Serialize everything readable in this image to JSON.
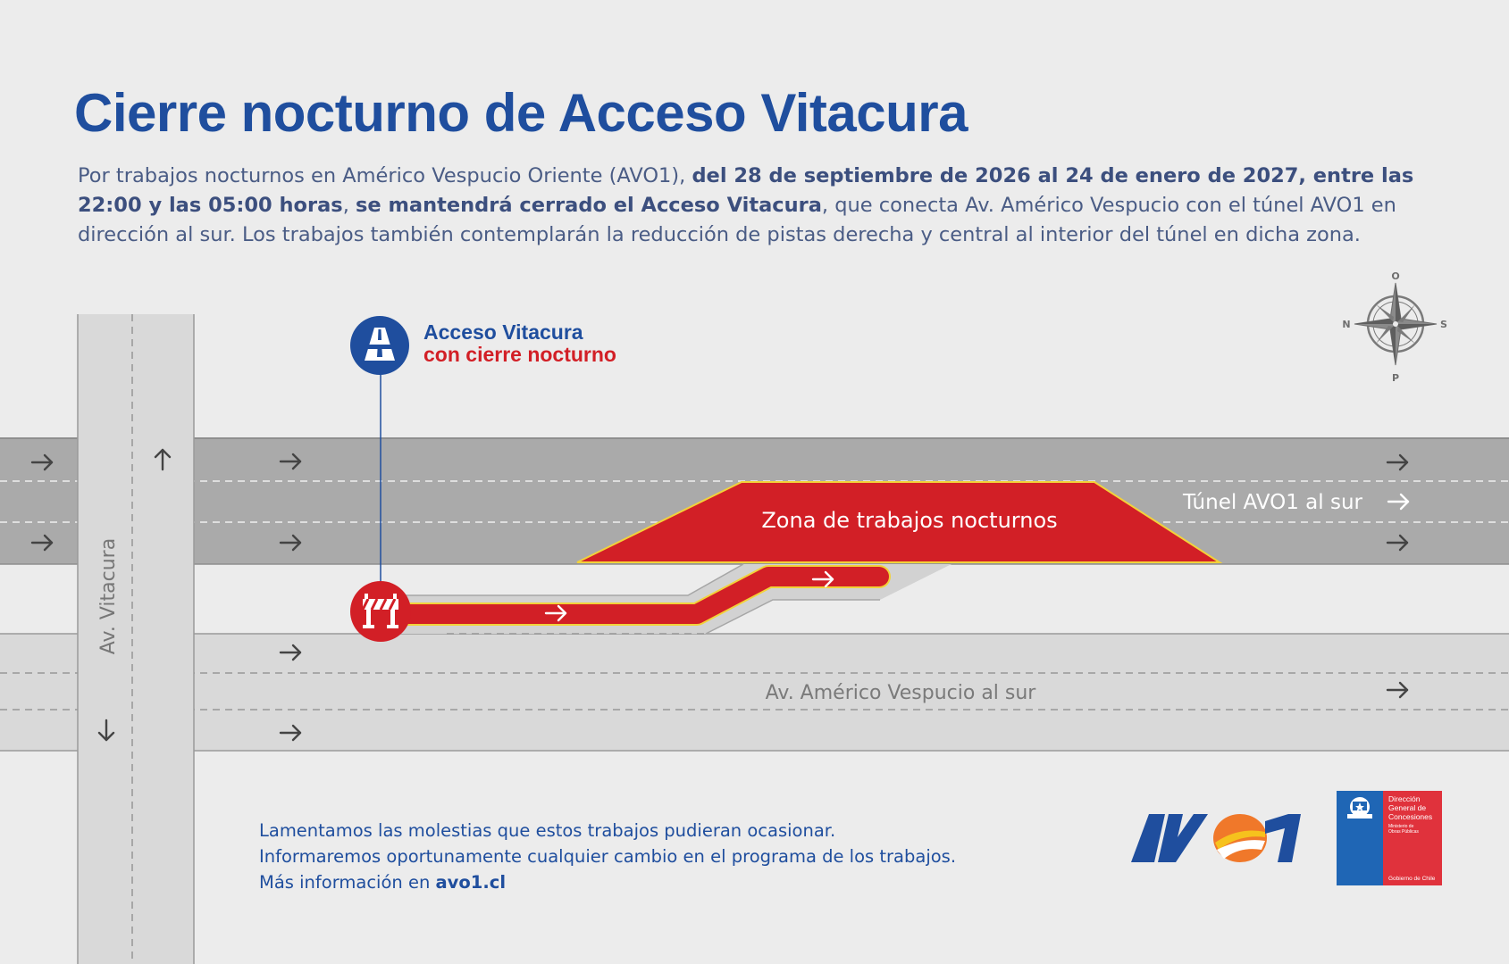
{
  "title": "Cierre nocturno de Acceso Vitacura",
  "description": {
    "part1": "Por trabajos nocturnos en Américo Vespucio Oriente (AVO1), ",
    "bold1": "del 28 de septiembre de 2026 al 24 de enero de 2027, entre las 22:00 y las 05:00 horas",
    "part2": ", ",
    "bold2": "se mantendrá cerrado el Acceso Vitacura",
    "part3": ", que conecta Av. Américo Vespucio con el túnel AVO1 en dirección al sur. Los trabajos también contemplarán la reducción de pistas derecha y central al interior del túnel en dicha zona."
  },
  "map": {
    "closure_label_1": "Acceso Vitacura",
    "closure_label_2": "con cierre nocturno",
    "work_zone_label": "Zona de trabajos nocturnos",
    "tunnel_label": "Túnel AVO1 al sur",
    "surface_road_label": "Av. Américo Vespucio al sur",
    "cross_street_label": "Av. Vitacura",
    "compass": {
      "north": "N",
      "south": "S",
      "east": "O",
      "west": "P"
    }
  },
  "footer": {
    "line1": "Lamentamos las molestias que estos trabajos pudieran ocasionar.",
    "line2": "Informaremos oportunamente cualquier cambio en el programa de los trabajos.",
    "line3_prefix": "Más información en ",
    "line3_link": "avo1.cl"
  },
  "logos": {
    "avo1": "AVO1",
    "gov_org_1": "Dirección",
    "gov_org_2": "General de",
    "gov_org_3": "Concesiones",
    "gov_ministry_1": "Ministerio de",
    "gov_ministry_2": "Obras Públicas",
    "gov_footer": "Gobierno de Chile"
  },
  "colors": {
    "brand_blue": "#1f4e9e",
    "closure_red": "#d21f26",
    "tunnel_gray": "#aaaaaa",
    "road_light": "#d9d9d9",
    "background": "#ececec",
    "avo_orange": "#f0782a"
  }
}
